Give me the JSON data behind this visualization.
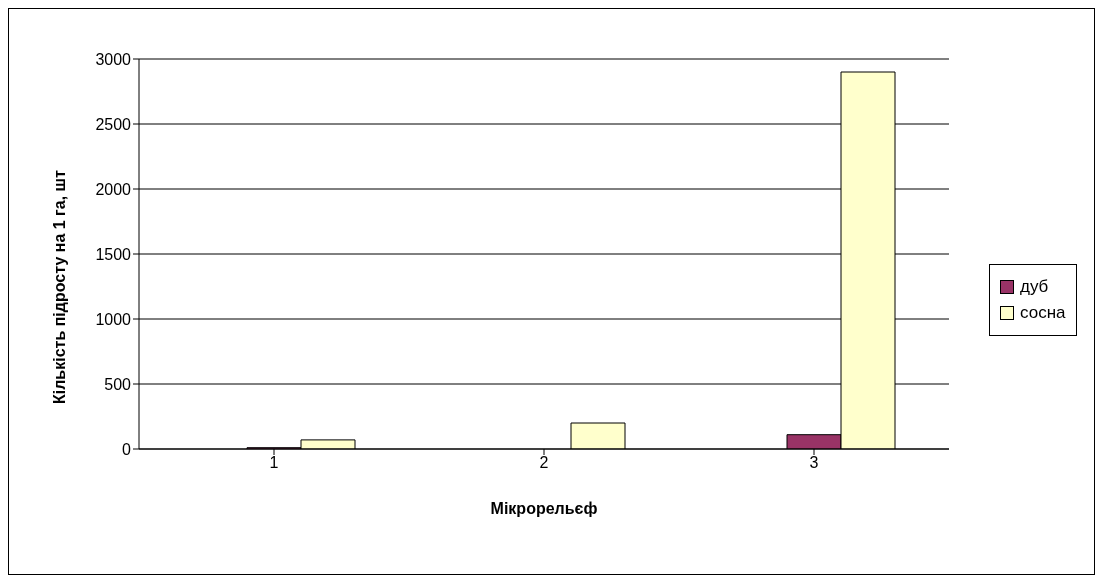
{
  "chart_data": {
    "type": "bar",
    "xlabel": "Мікрорельєф",
    "ylabel": "Кількість підросту на 1 га, шт",
    "categories": [
      "1",
      "2",
      "3"
    ],
    "series": [
      {
        "color": "#7777cc",
        "values": [
          0,
          0,
          0
        ]
      },
      {
        "name": "дуб",
        "color": "#993366",
        "values": [
          10,
          0,
          110
        ]
      },
      {
        "name": "сосна",
        "color": "#ffffcc",
        "values": [
          70,
          200,
          2900
        ]
      }
    ],
    "ylim": [
      0,
      3000
    ],
    "yticks": [
      0,
      500,
      1000,
      1500,
      2000,
      2500,
      3000
    ],
    "grid": "y",
    "legend": "right"
  }
}
